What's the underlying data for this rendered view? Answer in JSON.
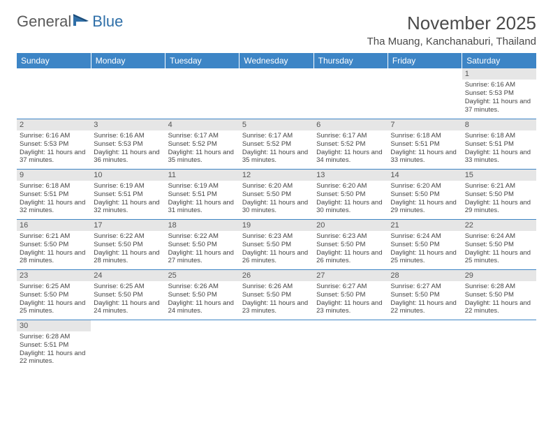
{
  "logo": {
    "general": "General",
    "blue": "Blue"
  },
  "title": "November 2025",
  "location": "Tha Muang, Kanchanaburi, Thailand",
  "colors": {
    "header_bg": "#3d85c6",
    "header_text": "#ffffff",
    "daynum_bg": "#e6e6e6",
    "logo_blue": "#2f6fa8",
    "border": "#3d85c6"
  },
  "weekdays": [
    "Sunday",
    "Monday",
    "Tuesday",
    "Wednesday",
    "Thursday",
    "Friday",
    "Saturday"
  ],
  "grid": [
    [
      null,
      null,
      null,
      null,
      null,
      null,
      {
        "n": "1",
        "sr": "6:16 AM",
        "ss": "5:53 PM",
        "dl": "11 hours and 37 minutes."
      }
    ],
    [
      {
        "n": "2",
        "sr": "6:16 AM",
        "ss": "5:53 PM",
        "dl": "11 hours and 37 minutes."
      },
      {
        "n": "3",
        "sr": "6:16 AM",
        "ss": "5:53 PM",
        "dl": "11 hours and 36 minutes."
      },
      {
        "n": "4",
        "sr": "6:17 AM",
        "ss": "5:52 PM",
        "dl": "11 hours and 35 minutes."
      },
      {
        "n": "5",
        "sr": "6:17 AM",
        "ss": "5:52 PM",
        "dl": "11 hours and 35 minutes."
      },
      {
        "n": "6",
        "sr": "6:17 AM",
        "ss": "5:52 PM",
        "dl": "11 hours and 34 minutes."
      },
      {
        "n": "7",
        "sr": "6:18 AM",
        "ss": "5:51 PM",
        "dl": "11 hours and 33 minutes."
      },
      {
        "n": "8",
        "sr": "6:18 AM",
        "ss": "5:51 PM",
        "dl": "11 hours and 33 minutes."
      }
    ],
    [
      {
        "n": "9",
        "sr": "6:18 AM",
        "ss": "5:51 PM",
        "dl": "11 hours and 32 minutes."
      },
      {
        "n": "10",
        "sr": "6:19 AM",
        "ss": "5:51 PM",
        "dl": "11 hours and 32 minutes."
      },
      {
        "n": "11",
        "sr": "6:19 AM",
        "ss": "5:51 PM",
        "dl": "11 hours and 31 minutes."
      },
      {
        "n": "12",
        "sr": "6:20 AM",
        "ss": "5:50 PM",
        "dl": "11 hours and 30 minutes."
      },
      {
        "n": "13",
        "sr": "6:20 AM",
        "ss": "5:50 PM",
        "dl": "11 hours and 30 minutes."
      },
      {
        "n": "14",
        "sr": "6:20 AM",
        "ss": "5:50 PM",
        "dl": "11 hours and 29 minutes."
      },
      {
        "n": "15",
        "sr": "6:21 AM",
        "ss": "5:50 PM",
        "dl": "11 hours and 29 minutes."
      }
    ],
    [
      {
        "n": "16",
        "sr": "6:21 AM",
        "ss": "5:50 PM",
        "dl": "11 hours and 28 minutes."
      },
      {
        "n": "17",
        "sr": "6:22 AM",
        "ss": "5:50 PM",
        "dl": "11 hours and 28 minutes."
      },
      {
        "n": "18",
        "sr": "6:22 AM",
        "ss": "5:50 PM",
        "dl": "11 hours and 27 minutes."
      },
      {
        "n": "19",
        "sr": "6:23 AM",
        "ss": "5:50 PM",
        "dl": "11 hours and 26 minutes."
      },
      {
        "n": "20",
        "sr": "6:23 AM",
        "ss": "5:50 PM",
        "dl": "11 hours and 26 minutes."
      },
      {
        "n": "21",
        "sr": "6:24 AM",
        "ss": "5:50 PM",
        "dl": "11 hours and 25 minutes."
      },
      {
        "n": "22",
        "sr": "6:24 AM",
        "ss": "5:50 PM",
        "dl": "11 hours and 25 minutes."
      }
    ],
    [
      {
        "n": "23",
        "sr": "6:25 AM",
        "ss": "5:50 PM",
        "dl": "11 hours and 25 minutes."
      },
      {
        "n": "24",
        "sr": "6:25 AM",
        "ss": "5:50 PM",
        "dl": "11 hours and 24 minutes."
      },
      {
        "n": "25",
        "sr": "6:26 AM",
        "ss": "5:50 PM",
        "dl": "11 hours and 24 minutes."
      },
      {
        "n": "26",
        "sr": "6:26 AM",
        "ss": "5:50 PM",
        "dl": "11 hours and 23 minutes."
      },
      {
        "n": "27",
        "sr": "6:27 AM",
        "ss": "5:50 PM",
        "dl": "11 hours and 23 minutes."
      },
      {
        "n": "28",
        "sr": "6:27 AM",
        "ss": "5:50 PM",
        "dl": "11 hours and 22 minutes."
      },
      {
        "n": "29",
        "sr": "6:28 AM",
        "ss": "5:50 PM",
        "dl": "11 hours and 22 minutes."
      }
    ],
    [
      {
        "n": "30",
        "sr": "6:28 AM",
        "ss": "5:51 PM",
        "dl": "11 hours and 22 minutes."
      },
      null,
      null,
      null,
      null,
      null,
      null
    ]
  ],
  "labels": {
    "sunrise": "Sunrise:",
    "sunset": "Sunset:",
    "daylight": "Daylight:"
  }
}
